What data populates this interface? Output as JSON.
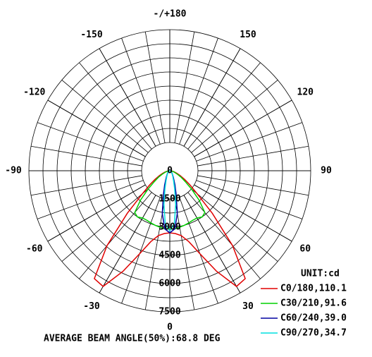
{
  "chart_data": {
    "type": "polar",
    "rlim": [
      0,
      7500
    ],
    "rticks": [
      0,
      1500,
      3000,
      4500,
      6000,
      7500
    ],
    "rminor": [
      2250,
      3750,
      5250,
      6750
    ],
    "thetaticks": [
      -150,
      -120,
      -90,
      -60,
      -30,
      0,
      30,
      60,
      90,
      120,
      150,
      {
        "value": 180,
        "label": "-/+180"
      }
    ],
    "theta": [
      -90,
      -85,
      -80,
      -75,
      -70,
      -65,
      -60,
      -55,
      -50,
      -45,
      -40,
      -35,
      -30,
      -25,
      -20,
      -15,
      -10,
      -5,
      0,
      5,
      10,
      15,
      20,
      25,
      30,
      35,
      40,
      45,
      50,
      55,
      60,
      65,
      70,
      75,
      80,
      85,
      90
    ],
    "unit": "UNIT:cd",
    "series": [
      {
        "name": "C0/180,110.1",
        "color": "#e00000",
        "values": [
          0,
          60,
          150,
          250,
          400,
          600,
          900,
          1300,
          1900,
          3200,
          5200,
          7000,
          7100,
          5900,
          4700,
          3900,
          3500,
          3350,
          3300,
          3350,
          3500,
          3900,
          4700,
          5900,
          7100,
          7000,
          5200,
          3200,
          1900,
          1300,
          900,
          600,
          400,
          250,
          150,
          60,
          0
        ]
      },
      {
        "name": "C30/210,91.6",
        "color": "#00d000",
        "values": [
          0,
          50,
          100,
          200,
          300,
          450,
          700,
          1000,
          1500,
          2200,
          2900,
          3000,
          2900,
          2900,
          2950,
          3000,
          3050,
          3100,
          3100,
          3100,
          3050,
          3000,
          2950,
          2900,
          2900,
          3000,
          2900,
          2200,
          1500,
          1000,
          700,
          450,
          300,
          200,
          100,
          50,
          0
        ]
      },
      {
        "name": "C60/240,39.0",
        "color": "#0000a0",
        "values": [
          0,
          10,
          20,
          30,
          40,
          60,
          80,
          100,
          120,
          150,
          200,
          250,
          350,
          500,
          800,
          1300,
          2300,
          3100,
          3300,
          3100,
          2300,
          1300,
          800,
          500,
          350,
          250,
          200,
          150,
          120,
          100,
          80,
          60,
          40,
          30,
          20,
          10,
          0
        ]
      },
      {
        "name": "C90/270,34.7",
        "color": "#00e0e0",
        "values": [
          0,
          5,
          15,
          20,
          30,
          45,
          60,
          80,
          100,
          130,
          170,
          220,
          300,
          400,
          600,
          1000,
          1800,
          2800,
          3200,
          2800,
          1800,
          1000,
          600,
          400,
          300,
          220,
          170,
          130,
          100,
          80,
          60,
          45,
          30,
          20,
          15,
          5,
          0
        ]
      }
    ],
    "footer": "AVERAGE BEAM ANGLE(50%):68.8 DEG"
  }
}
